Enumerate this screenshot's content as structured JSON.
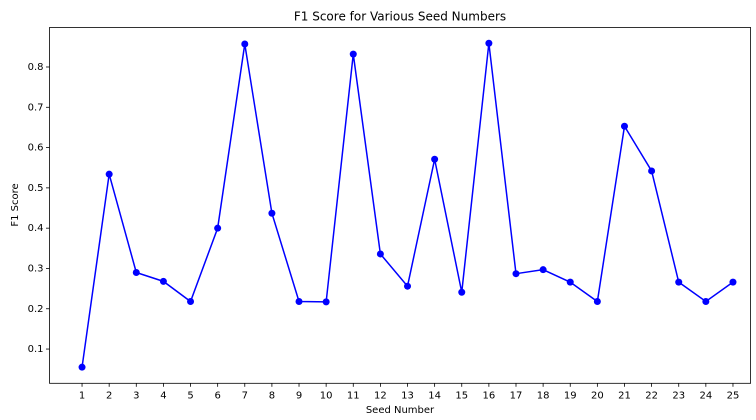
{
  "chart_data": {
    "type": "line",
    "title": "F1 Score for Various Seed Numbers",
    "xlabel": "Seed Number",
    "ylabel": "F1 Score",
    "x": [
      1,
      2,
      3,
      4,
      5,
      6,
      7,
      8,
      9,
      10,
      11,
      12,
      13,
      14,
      15,
      16,
      17,
      18,
      19,
      20,
      21,
      22,
      23,
      24,
      25
    ],
    "series": [
      {
        "name": "F1 Score",
        "color": "#0000ff",
        "values": [
          0.055,
          0.534,
          0.29,
          0.268,
          0.218,
          0.4,
          0.857,
          0.437,
          0.218,
          0.217,
          0.832,
          0.336,
          0.256,
          0.571,
          0.241,
          0.859,
          0.287,
          0.297,
          0.266,
          0.218,
          0.653,
          0.542,
          0.266,
          0.218,
          0.266
        ]
      }
    ],
    "xlim": [
      -0.2,
      25.65
    ],
    "xticks": [
      1,
      2,
      3,
      4,
      5,
      6,
      7,
      8,
      9,
      10,
      11,
      12,
      13,
      14,
      15,
      16,
      17,
      18,
      19,
      20,
      21,
      22,
      23,
      24,
      25
    ],
    "ylim": [
      0.015,
      0.898
    ],
    "yticks": [
      0.1,
      0.2,
      0.3,
      0.4,
      0.5,
      0.6,
      0.7,
      0.8
    ],
    "grid": false,
    "markers": true
  }
}
